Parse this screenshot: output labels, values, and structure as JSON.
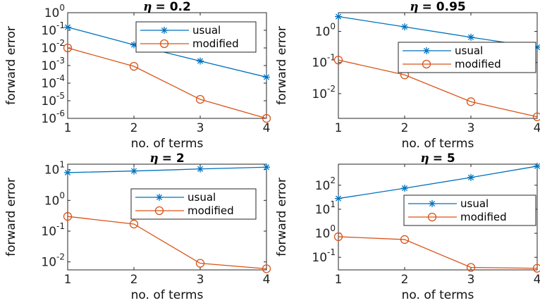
{
  "colors": {
    "usual": "#0072BD",
    "modified": "#D95319",
    "axis": "#262626"
  },
  "chart_data": [
    {
      "type": "line",
      "title_symbol": "η",
      "title_value": "= 0.2",
      "xlabel": "no. of terms",
      "ylabel": "forward error",
      "x": [
        1,
        2,
        3,
        4
      ],
      "xlim": [
        1,
        4
      ],
      "ylim": [
        1e-06,
        1
      ],
      "yscale": "log",
      "grid": false,
      "legend_position": "top-right",
      "series": [
        {
          "name": "usual",
          "marker": "asterisk",
          "values": [
            0.15,
            0.015,
            0.0018,
            0.00022
          ]
        },
        {
          "name": "modified",
          "marker": "circle",
          "values": [
            0.01,
            0.0009,
            1.2e-05,
            1e-06
          ]
        }
      ],
      "xticks": [
        "1",
        "2",
        "3",
        "4"
      ],
      "yticks": [
        {
          "value": 1,
          "base": "10",
          "exp": "0"
        },
        {
          "value": 0.1,
          "base": "10",
          "exp": "-1"
        },
        {
          "value": 0.01,
          "base": "10",
          "exp": "-2"
        },
        {
          "value": 0.001,
          "base": "10",
          "exp": "-3"
        },
        {
          "value": 0.0001,
          "base": "10",
          "exp": "-4"
        },
        {
          "value": 1e-05,
          "base": "10",
          "exp": "-5"
        },
        {
          "value": 1e-06,
          "base": "10",
          "exp": "-6"
        }
      ]
    },
    {
      "type": "line",
      "title_symbol": "η",
      "title_value": "= 0.95",
      "xlabel": "no. of terms",
      "ylabel": "forward error",
      "x": [
        1,
        2,
        3,
        4
      ],
      "xlim": [
        1,
        4
      ],
      "ylim": [
        0.0016,
        4
      ],
      "yscale": "log",
      "grid": false,
      "legend_position": "top-right",
      "series": [
        {
          "name": "usual",
          "marker": "asterisk",
          "values": [
            3.0,
            1.4,
            0.65,
            0.31
          ]
        },
        {
          "name": "modified",
          "marker": "circle",
          "values": [
            0.12,
            0.04,
            0.0055,
            0.0018
          ]
        }
      ],
      "xticks": [
        "1",
        "2",
        "3",
        "4"
      ],
      "yticks": [
        {
          "value": 1,
          "base": "10",
          "exp": "0"
        },
        {
          "value": 0.1,
          "base": "10",
          "exp": "-1"
        },
        {
          "value": 0.01,
          "base": "10",
          "exp": "-2"
        }
      ]
    },
    {
      "type": "line",
      "title_symbol": "η",
      "title_value": "= 2",
      "xlabel": "no. of terms",
      "ylabel": "forward error",
      "x": [
        1,
        2,
        3,
        4
      ],
      "xlim": [
        1,
        4
      ],
      "ylim": [
        0.0055,
        15
      ],
      "yscale": "log",
      "grid": false,
      "legend_position": "center-right",
      "series": [
        {
          "name": "usual",
          "marker": "asterisk",
          "values": [
            8,
            9,
            10.5,
            12
          ]
        },
        {
          "name": "modified",
          "marker": "circle",
          "values": [
            0.3,
            0.17,
            0.009,
            0.006
          ]
        }
      ],
      "xticks": [
        "1",
        "2",
        "3",
        "4"
      ],
      "yticks": [
        {
          "value": 10,
          "base": "10",
          "exp": "1"
        },
        {
          "value": 1,
          "base": "10",
          "exp": "0"
        },
        {
          "value": 0.1,
          "base": "10",
          "exp": "-1"
        },
        {
          "value": 0.01,
          "base": "10",
          "exp": "-2"
        }
      ]
    },
    {
      "type": "line",
      "title_symbol": "η",
      "title_value": "= 5",
      "xlabel": "no. of terms",
      "ylabel": "forward error",
      "x": [
        1,
        2,
        3,
        4
      ],
      "xlim": [
        1,
        4
      ],
      "ylim": [
        0.03,
        750
      ],
      "yscale": "log",
      "grid": false,
      "legend_position": "center-right",
      "series": [
        {
          "name": "usual",
          "marker": "asterisk",
          "values": [
            28,
            75,
            210,
            620
          ]
        },
        {
          "name": "modified",
          "marker": "circle",
          "values": [
            0.72,
            0.55,
            0.038,
            0.035
          ]
        }
      ],
      "xticks": [
        "1",
        "2",
        "3",
        "4"
      ],
      "yticks": [
        {
          "value": 100,
          "base": "10",
          "exp": "2"
        },
        {
          "value": 10,
          "base": "10",
          "exp": "1"
        },
        {
          "value": 1,
          "base": "10",
          "exp": "0"
        },
        {
          "value": 0.1,
          "base": "10",
          "exp": "-1"
        }
      ]
    }
  ]
}
